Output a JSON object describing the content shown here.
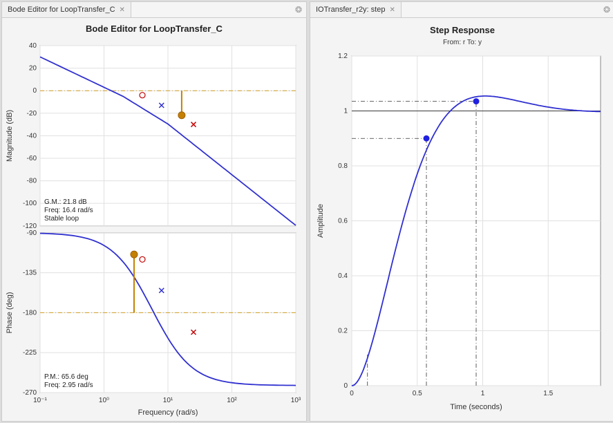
{
  "left_panel": {
    "tab_label": "Bode Editor for LoopTransfer_C",
    "title": "Bode Editor for LoopTransfer_C",
    "mag": {
      "ylabel": "Magnitude (dB)",
      "yticks": [
        -120,
        -100,
        -80,
        -60,
        -40,
        -20,
        0,
        20,
        40
      ],
      "ylim": [
        -120,
        40
      ],
      "info_lines": [
        "G.M.: 21.8 dB",
        "Freq: 16.4 rad/s",
        "Stable loop"
      ],
      "curve_color": "#3030d0",
      "zero_line": 0,
      "gm_freq_log": 1.215,
      "gm_db": -21.8,
      "zero_mark_freq_log": 0.6,
      "zero_mark_db": -4,
      "x_blue_freq_log": 0.9,
      "x_blue_db": -13,
      "x_red_freq_log": 1.4,
      "x_red_db": -30
    },
    "phase": {
      "ylabel": "Phase (deg)",
      "yticks": [
        -270,
        -225,
        -180,
        -135,
        -90
      ],
      "ylim": [
        -270,
        -90
      ],
      "info_lines": [
        "P.M.: 65.6 deg",
        "Freq: 2.95 rad/s"
      ],
      "curve_color": "#3030d0",
      "zero_line": -180,
      "pm_freq_log": 0.47,
      "pm_deg": -114.4,
      "o_red_freq_log": 0.6,
      "o_red_deg": -120,
      "x_blue_freq_log": 0.9,
      "x_blue_deg": -155,
      "x_red_freq_log": 1.4,
      "x_red_deg": -202
    },
    "xlabel": "Frequency (rad/s)",
    "xlim_log": [
      -1,
      3
    ],
    "xtick_logs": [
      -1,
      0,
      1,
      2,
      3
    ],
    "xtick_labels": [
      "10⁻¹",
      "10⁰",
      "10¹",
      "10²",
      "10³"
    ]
  },
  "right_panel": {
    "tab_label": "IOTransfer_r2y: step",
    "title": "Step Response",
    "subtitle": "From: r  To: y",
    "xlabel": "Time (seconds)",
    "ylabel": "Amplitude",
    "xlim": [
      0,
      1.9
    ],
    "ylim": [
      0,
      1.2
    ],
    "xticks": [
      0,
      0.5,
      1,
      1.5
    ],
    "yticks": [
      0,
      0.2,
      0.4,
      0.6,
      0.8,
      1,
      1.2
    ],
    "curve_color": "#3030d0",
    "settle_line": 1.0,
    "rise_point": {
      "t": 0.57,
      "y": 0.9
    },
    "peak_point": {
      "t": 0.95,
      "y": 1.035
    },
    "initial_dash_t": 0.12
  }
}
